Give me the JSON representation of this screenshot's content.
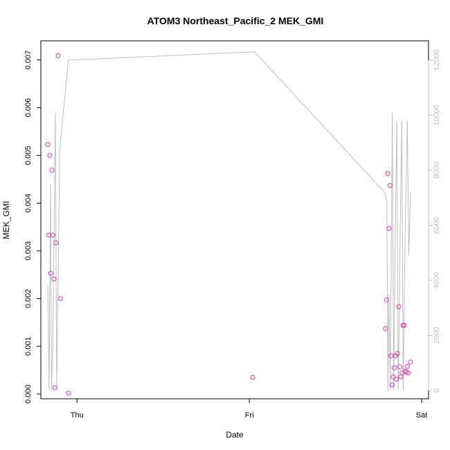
{
  "chart_data": {
    "type": "scatter",
    "title": "ATOM3 Northeast_Pacific_2 MEK_GMI",
    "xlabel": "Date",
    "ylabel": "MEK_GMI",
    "x_ticks": [
      "Thu",
      "Fri",
      "Sat"
    ],
    "xlim_days": [
      -0.21,
      2.04
    ],
    "ylim": [
      -0.0001,
      0.0074
    ],
    "y_ticks": [
      "0.000",
      "0.001",
      "0.002",
      "0.003",
      "0.004",
      "0.005",
      "0.006",
      "0.007"
    ],
    "y2lim": [
      -300,
      12700
    ],
    "y2_ticks": [
      "0",
      "2000",
      "4000",
      "6000",
      "8000",
      "10000",
      "12000"
    ],
    "colors": {
      "points": "#e62fb0",
      "line": "#bdbdbd",
      "axis": "#000000",
      "right_axis": "#bdbdbd"
    },
    "series": [
      {
        "type": "scatter",
        "axis": "left",
        "points": [
          [
            -0.17,
            0.00523
          ],
          [
            -0.164,
            0.00333
          ],
          [
            -0.158,
            0.005
          ],
          [
            -0.152,
            0.00253
          ],
          [
            -0.146,
            0.00469
          ],
          [
            -0.14,
            0.00333
          ],
          [
            -0.134,
            0.00241
          ],
          [
            -0.128,
            0.00013
          ],
          [
            -0.122,
            0.00317
          ],
          [
            -0.11,
            0.00709
          ],
          [
            -0.096,
            0.002
          ],
          [
            -0.05,
            2e-05
          ],
          [
            1.02,
            0.00035
          ],
          [
            1.79,
            0.00137
          ],
          [
            1.797,
            0.00197
          ],
          [
            1.803,
            0.00462
          ],
          [
            1.81,
            0.00347
          ],
          [
            1.816,
            0.00437
          ],
          [
            1.822,
            0.0008
          ],
          [
            1.829,
            0.00019
          ],
          [
            1.835,
            0.00036
          ],
          [
            1.841,
            0.00055
          ],
          [
            1.848,
            0.0008
          ],
          [
            1.854,
            0.00031
          ],
          [
            1.86,
            0.00085
          ],
          [
            1.867,
            0.00183
          ],
          [
            1.873,
            0.00057
          ],
          [
            1.879,
            0.00036
          ],
          [
            1.886,
            0.00044
          ],
          [
            1.892,
            0.00144
          ],
          [
            1.898,
            0.00144
          ],
          [
            1.904,
            0.00048
          ],
          [
            1.911,
            0.00046
          ],
          [
            1.917,
            0.00058
          ],
          [
            1.923,
            0.00044
          ],
          [
            1.935,
            0.00067
          ]
        ]
      },
      {
        "type": "line",
        "axis": "right",
        "points": [
          [
            -0.17,
            3800
          ],
          [
            -0.162,
            0
          ],
          [
            -0.154,
            7500
          ],
          [
            -0.148,
            0
          ],
          [
            -0.14,
            2000
          ],
          [
            -0.126,
            10100
          ],
          [
            -0.118,
            100
          ],
          [
            -0.1,
            8800
          ],
          [
            -0.05,
            12000
          ],
          [
            1.03,
            12300
          ],
          [
            1.785,
            7200
          ],
          [
            1.798,
            6900
          ],
          [
            1.804,
            0
          ],
          [
            1.81,
            3500
          ],
          [
            1.818,
            0
          ],
          [
            1.83,
            10100
          ],
          [
            1.838,
            0
          ],
          [
            1.845,
            4800
          ],
          [
            1.856,
            9800
          ],
          [
            1.864,
            0
          ],
          [
            1.876,
            6000
          ],
          [
            1.885,
            9800
          ],
          [
            1.893,
            0
          ],
          [
            1.904,
            5600
          ],
          [
            1.917,
            9800
          ],
          [
            1.925,
            4900
          ],
          [
            1.935,
            7200
          ]
        ]
      }
    ]
  }
}
